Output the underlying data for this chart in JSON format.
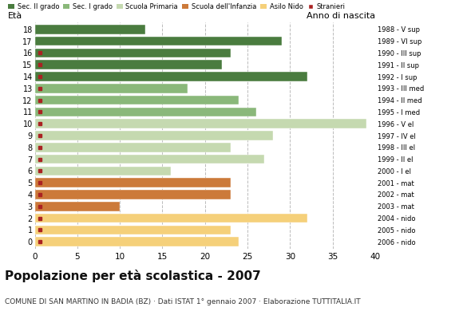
{
  "ages": [
    18,
    17,
    16,
    15,
    14,
    13,
    12,
    11,
    10,
    9,
    8,
    7,
    6,
    5,
    4,
    3,
    2,
    1,
    0
  ],
  "values": [
    13,
    29,
    23,
    22,
    32,
    18,
    24,
    26,
    39,
    28,
    23,
    27,
    16,
    23,
    23,
    10,
    32,
    23,
    24
  ],
  "stranieri": [
    0,
    0,
    1,
    1,
    1,
    1,
    1,
    1,
    1,
    1,
    1,
    1,
    1,
    1,
    1,
    1,
    1,
    1,
    1
  ],
  "right_labels": [
    "1988 - V sup",
    "1989 - VI sup",
    "1990 - III sup",
    "1991 - II sup",
    "1992 - I sup",
    "1993 - III med",
    "1994 - II med",
    "1995 - I med",
    "1996 - V el",
    "1997 - IV el",
    "1998 - III el",
    "1999 - II el",
    "2000 - I el",
    "2001 - mat",
    "2002 - mat",
    "2003 - mat",
    "2004 - nido",
    "2005 - nido",
    "2006 - nido"
  ],
  "bar_colors": [
    "#4a7c3f",
    "#4a7c3f",
    "#4a7c3f",
    "#4a7c3f",
    "#4a7c3f",
    "#8ab87a",
    "#8ab87a",
    "#8ab87a",
    "#c5d9b0",
    "#c5d9b0",
    "#c5d9b0",
    "#c5d9b0",
    "#c5d9b0",
    "#cc7a3a",
    "#cc7a3a",
    "#cc7a3a",
    "#f5d07a",
    "#f5d07a",
    "#f5d07a"
  ],
  "stranieri_color": "#aa2222",
  "bg_color": "#ffffff",
  "grid_color": "#bbbbbb",
  "title": "Popolazione per età scolastica - 2007",
  "subtitle": "COMUNE DI SAN MARTINO IN BADIA (BZ) · Dati ISTAT 1° gennaio 2007 · Elaborazione TUTTITALIA.IT",
  "legend_labels": [
    "Sec. II grado",
    "Sec. I grado",
    "Scuola Primaria",
    "Scuola dell'Infanzia",
    "Asilo Nido",
    "Stranieri"
  ],
  "legend_colors": [
    "#4a7c3f",
    "#8ab87a",
    "#c5d9b0",
    "#cc7a3a",
    "#f5d07a",
    "#aa2222"
  ],
  "xlim": [
    0,
    40
  ],
  "xticks": [
    0,
    5,
    10,
    15,
    20,
    25,
    30,
    35,
    40
  ],
  "ylabel": "Età",
  "right_ylabel": "Anno di nascita",
  "title_fontsize": 11,
  "subtitle_fontsize": 6.5,
  "bar_height": 0.78
}
